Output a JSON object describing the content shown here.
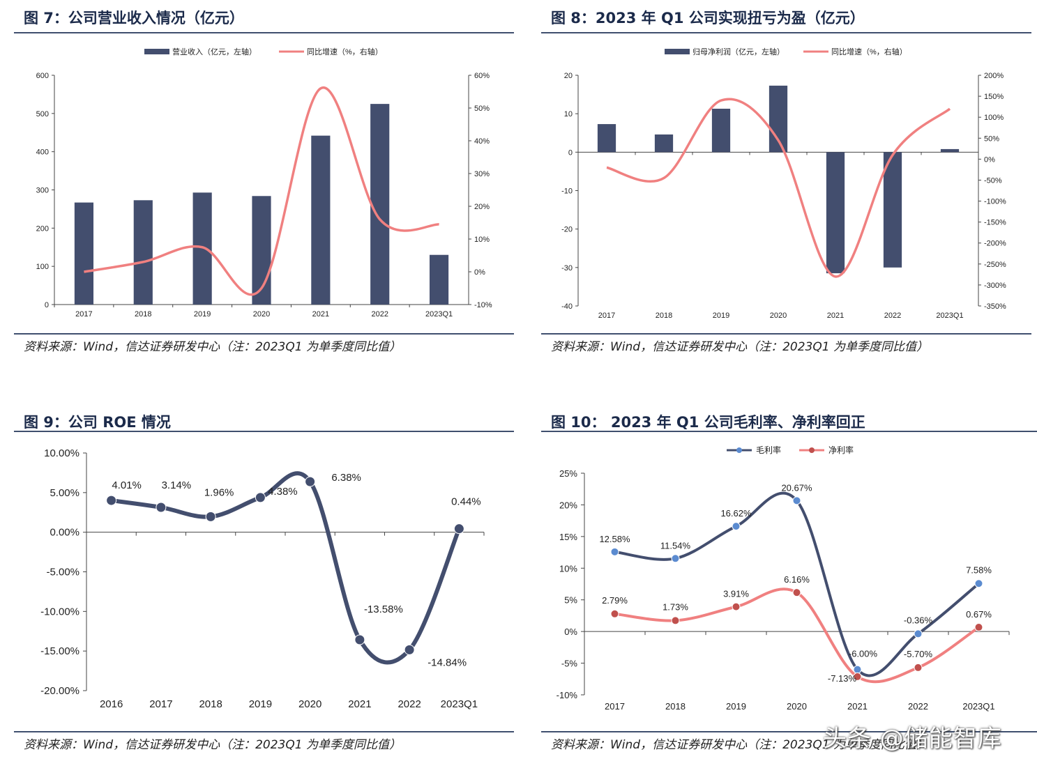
{
  "panels": [
    {
      "title": "图 7：公司营业收入情况（亿元）",
      "source": "资料来源：Wind，信达证券研发中心（注：2023Q1 为单季度同比值）"
    },
    {
      "title": "图 8：2023 年 Q1 公司实现扭亏为盈（亿元）",
      "source": "资料来源：Wind，信达证券研发中心（注：2023Q1 为单季度同比值）"
    },
    {
      "title": "图 9：公司 ROE 情况",
      "source": "资料来源：Wind，信达证券研发中心（注：2023Q1 为单季度同比值）"
    },
    {
      "title": "图 10： 2023 年 Q1 公司毛利率、净利率回正",
      "source": "资料来源：Wind，信达证券研发中心（注：2023Q1 为单季度同比值）"
    }
  ],
  "watermark": "头条 @储能智库",
  "chart_data": [
    {
      "type": "bar",
      "categories": [
        "2017",
        "2018",
        "2019",
        "2020",
        "2021",
        "2022",
        "2023Q1"
      ],
      "series": [
        {
          "name": "营业收入（亿元，左轴）",
          "type": "bar",
          "axis": "left",
          "color": "#434e6e",
          "values": [
            267,
            273,
            293,
            284,
            442,
            525,
            130
          ]
        },
        {
          "name": "同比增速（%，右轴）",
          "type": "line",
          "axis": "right",
          "color": "#f08080",
          "values": [
            0,
            3,
            7.5,
            -5,
            56,
            16,
            14.5
          ]
        }
      ],
      "ylim": [
        0,
        600
      ],
      "yticks": [
        "0",
        "100",
        "200",
        "300",
        "400",
        "500",
        "600"
      ],
      "y2lim": [
        -10,
        60
      ],
      "y2ticks": [
        "-10%",
        "0%",
        "10%",
        "20%",
        "30%",
        "40%",
        "50%",
        "60%"
      ],
      "legend": "top-center",
      "grid": false
    },
    {
      "type": "bar",
      "categories": [
        "2017",
        "2018",
        "2019",
        "2020",
        "2021",
        "2022",
        "2023Q1"
      ],
      "series": [
        {
          "name": "归母净利润（亿元，左轴）",
          "type": "bar",
          "axis": "left",
          "color": "#434e6e",
          "values": [
            7.3,
            4.6,
            11.3,
            17.3,
            -31.5,
            -30,
            0.8
          ]
        },
        {
          "name": "同比增速（%，右轴）",
          "type": "line",
          "axis": "right",
          "color": "#f08080",
          "values": [
            -20,
            -45,
            140,
            45,
            -280,
            10,
            120
          ]
        }
      ],
      "ylim": [
        -40,
        20
      ],
      "yticks": [
        "-40",
        "-30",
        "-20",
        "-10",
        "0",
        "10",
        "20"
      ],
      "y2lim": [
        -350,
        200
      ],
      "y2ticks": [
        "-350%",
        "-300%",
        "-250%",
        "-200%",
        "-150%",
        "-100%",
        "-50%",
        "0%",
        "50%",
        "100%",
        "150%",
        "200%"
      ],
      "legend": "top-center",
      "grid": false
    },
    {
      "type": "line",
      "categories": [
        "2016",
        "2017",
        "2018",
        "2019",
        "2020",
        "2021",
        "2022",
        "2023Q1"
      ],
      "series": [
        {
          "name": "",
          "color": "#434e6e",
          "values": [
            4.01,
            3.14,
            1.96,
            4.38,
            6.38,
            -13.58,
            -14.84,
            0.44
          ],
          "labels": [
            "4.01%",
            "3.14%",
            "1.96%",
            "4.38%",
            "6.38%",
            "-13.58%",
            "-14.84%",
            "0.44%"
          ]
        }
      ],
      "ylim": [
        -20,
        10
      ],
      "yticks": [
        "-20.00%",
        "-15.00%",
        "-10.00%",
        "-5.00%",
        "0.00%",
        "5.00%",
        "10.00%"
      ],
      "legend": "none",
      "grid": false
    },
    {
      "type": "line",
      "categories": [
        "2017",
        "2018",
        "2019",
        "2020",
        "2021",
        "2022",
        "2023Q1"
      ],
      "series": [
        {
          "name": "毛利率",
          "color": "#434e6e",
          "marker": "#5b8bd0",
          "values": [
            12.58,
            11.54,
            16.62,
            20.67,
            -6.0,
            -0.36,
            7.58
          ],
          "labels": [
            "12.58%",
            "11.54%",
            "16.62%",
            "20.67%",
            "-6.00%",
            "-0.36%",
            "7.58%"
          ]
        },
        {
          "name": "净利率",
          "color": "#f08080",
          "marker": "#c0504d",
          "values": [
            2.79,
            1.73,
            3.91,
            6.16,
            -7.13,
            -5.7,
            0.67
          ],
          "labels": [
            "2.79%",
            "1.73%",
            "3.91%",
            "6.16%",
            "-7.13%",
            "-5.70%",
            "0.67%"
          ]
        }
      ],
      "ylim": [
        -10,
        25
      ],
      "yticks": [
        "-10%",
        "-5%",
        "0%",
        "5%",
        "10%",
        "15%",
        "20%",
        "25%"
      ],
      "legend": "top-center",
      "grid": false
    }
  ]
}
